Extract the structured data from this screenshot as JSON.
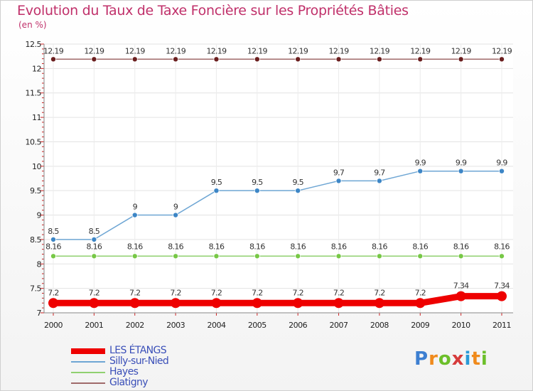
{
  "header": {
    "title": "Evolution du Taux de Taxe Foncière sur les Propriétés Bâties",
    "unit": "(en %)"
  },
  "brand": {
    "text": "Proxiti",
    "colors": [
      "#3d7fd1",
      "#f08a1c",
      "#6cbf2a",
      "#d63b3b",
      "#2a9ad8"
    ]
  },
  "chart_data": {
    "type": "line",
    "title": "Evolution du Taux de Taxe Foncière sur les Propriétés Bâties",
    "ylabel": "(en %)",
    "xlabel": "",
    "ylim": [
      7,
      12.5
    ],
    "yticks": [
      "7",
      "7.5",
      "8",
      "8.5",
      "9",
      "9.5",
      "10",
      "10.5",
      "11",
      "11.5",
      "12",
      "12.5"
    ],
    "categories": [
      "2000",
      "2001",
      "2002",
      "2003",
      "2004",
      "2005",
      "2006",
      "2007",
      "2008",
      "2009",
      "2010",
      "2011"
    ],
    "grid": true,
    "legend_position": "bottom-left",
    "series": [
      {
        "name": "LES ÉTANGS",
        "color": "#ee0000",
        "point_color": "#ee0000",
        "emphasis": "thick",
        "values": [
          7.2,
          7.2,
          7.2,
          7.2,
          7.2,
          7.2,
          7.2,
          7.2,
          7.2,
          7.2,
          7.34,
          7.34
        ],
        "labels": [
          "7.2",
          "7.2",
          "7.2",
          "7.2",
          "7.2",
          "7.2",
          "7.2",
          "7.2",
          "7.2",
          "7.2",
          "7.34",
          "7.34"
        ]
      },
      {
        "name": "Silly-sur-Nied",
        "color": "#6ea6d4",
        "point_color": "#3d86c6",
        "emphasis": "normal",
        "values": [
          8.5,
          8.5,
          9,
          9,
          9.5,
          9.5,
          9.5,
          9.7,
          9.7,
          9.9,
          9.9,
          9.9
        ],
        "labels": [
          "8.5",
          "8.5",
          "9",
          "9",
          "9.5",
          "9.5",
          "9.5",
          "9.7",
          "9.7",
          "9.9",
          "9.9",
          "9.9"
        ]
      },
      {
        "name": "Hayes",
        "color": "#90d070",
        "point_color": "#77c846",
        "emphasis": "normal",
        "values": [
          8.16,
          8.16,
          8.16,
          8.16,
          8.16,
          8.16,
          8.16,
          8.16,
          8.16,
          8.16,
          8.16,
          8.16
        ],
        "labels": [
          "8.16",
          "8.16",
          "8.16",
          "8.16",
          "8.16",
          "8.16",
          "8.16",
          "8.16",
          "8.16",
          "8.16",
          "8.16",
          "8.16"
        ]
      },
      {
        "name": "Glatigny",
        "color": "#a06a6a",
        "point_color": "#6b1f1f",
        "emphasis": "normal",
        "values": [
          12.19,
          12.19,
          12.19,
          12.19,
          12.19,
          12.19,
          12.19,
          12.19,
          12.19,
          12.19,
          12.19,
          12.19
        ],
        "labels": [
          "12.19",
          "12.19",
          "12.19",
          "12.19",
          "12.19",
          "12.19",
          "12.19",
          "12.19",
          "12.19",
          "12.19",
          "12.19",
          "12.19"
        ]
      }
    ]
  }
}
